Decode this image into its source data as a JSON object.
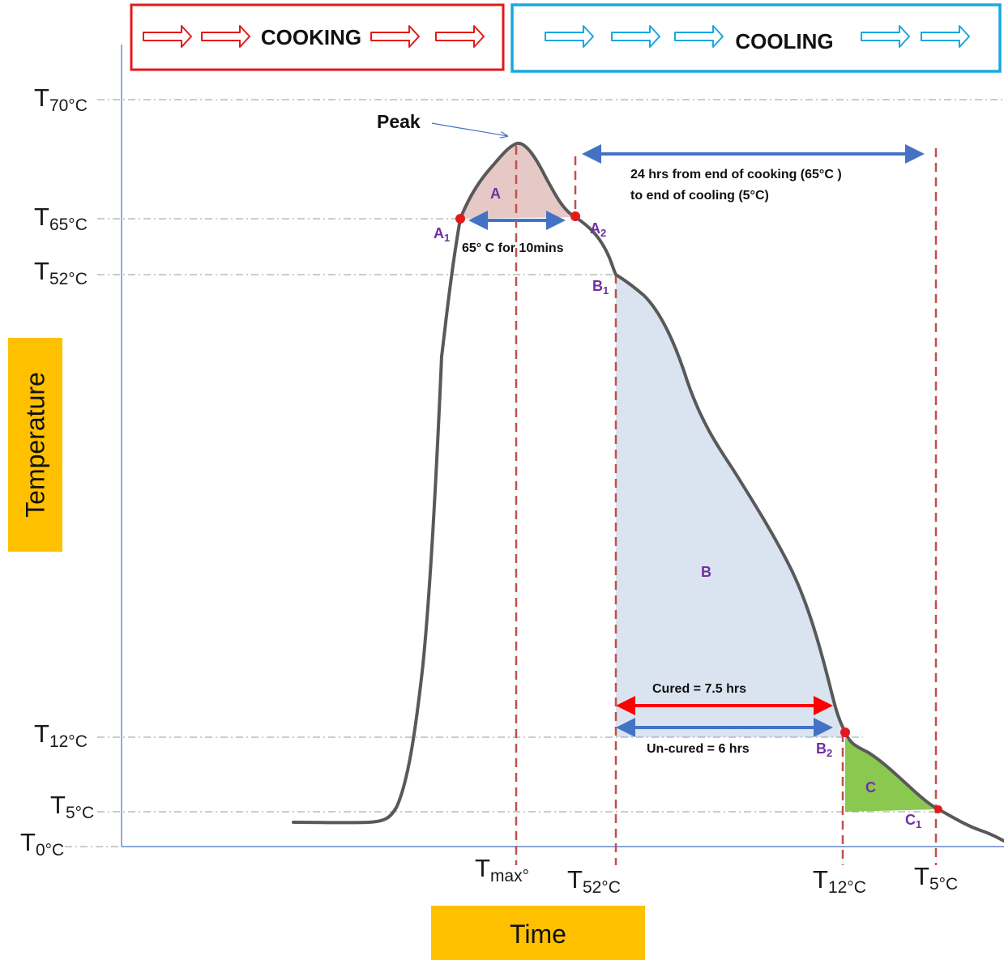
{
  "phases": {
    "cooking": "COOKING",
    "cooling": "COOLING"
  },
  "y_ticks": [
    {
      "base": "T",
      "sub": "70°C"
    },
    {
      "base": "T",
      "sub": "65°C"
    },
    {
      "base": "T",
      "sub": "52°C"
    },
    {
      "base": "T",
      "sub": "12°C"
    },
    {
      "base": "T",
      "sub": "5°C"
    },
    {
      "base": "T",
      "sub": "0°C"
    }
  ],
  "x_ticks": [
    {
      "base": "T",
      "sub": "max°"
    },
    {
      "base": "T",
      "sub": "52°C"
    },
    {
      "base": "T",
      "sub": "12°C"
    },
    {
      "base": "T",
      "sub": "5°C"
    }
  ],
  "axis": {
    "y_title": "Temperature",
    "x_title": "Time"
  },
  "labels": {
    "peak": "Peak",
    "hold": "65° C for 10mins",
    "window_line1": "24 hrs from end of cooking  (65°C )",
    "window_line2": "to  end of cooling (5°C)",
    "cured": "Cured =  7.5 hrs",
    "uncured": "Un-cured =  6 hrs",
    "region_a": "A",
    "region_b": "B",
    "region_c": "C"
  },
  "points": [
    {
      "base": "A",
      "sub": "1"
    },
    {
      "base": "A",
      "sub": "2"
    },
    {
      "base": "B",
      "sub": "1"
    },
    {
      "base": "B",
      "sub": "2"
    },
    {
      "base": "C",
      "sub": "1"
    }
  ],
  "colors": {
    "curve": "#595959",
    "cooking": "#e3191b",
    "cooling": "#1aa7e0",
    "blue_arrow": "#4472c4",
    "red_arrow": "#ff0000",
    "dashed_red": "#c0504d",
    "region_a": "#e6c9c6",
    "region_b": "#dae4f1",
    "region_c": "#8bc850",
    "axis_box": "#ffc000",
    "point_label": "#7030a0"
  }
}
